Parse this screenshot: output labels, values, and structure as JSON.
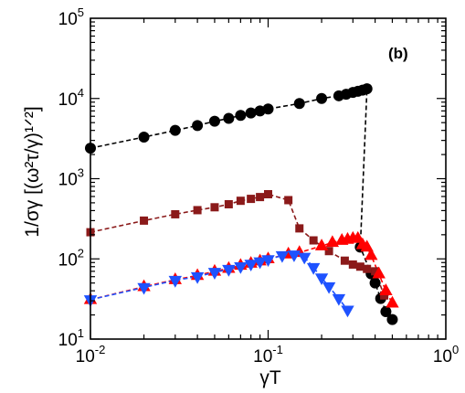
{
  "chart_data": {
    "type": "scatter",
    "x_scale": "log",
    "y_scale": "log",
    "xlim": [
      0.01,
      1
    ],
    "ylim": [
      10,
      100000
    ],
    "x_ticks": [
      {
        "base": "10",
        "exp": "-2",
        "value": 0.01
      },
      {
        "base": "10",
        "exp": "-1",
        "value": 0.1
      },
      {
        "base": "10",
        "exp": "0",
        "value": 1
      }
    ],
    "y_ticks": [
      {
        "base": "10",
        "exp": "1",
        "value": 10
      },
      {
        "base": "10",
        "exp": "2",
        "value": 100
      },
      {
        "base": "10",
        "exp": "3",
        "value": 1000
      },
      {
        "base": "10",
        "exp": "4",
        "value": 10000
      },
      {
        "base": "10",
        "exp": "5",
        "value": 100000
      }
    ],
    "xlabel": "γT",
    "ylabel": "1/σγ [(ω²τ/γ)¹ᐟ²]",
    "panel_label": "(b)",
    "grid": false,
    "legend": "none",
    "series": [
      {
        "marker": "circle",
        "color": "#000000",
        "line_style": "dashed",
        "points": [
          [
            0.01,
            2400
          ],
          [
            0.02,
            3300
          ],
          [
            0.03,
            4000
          ],
          [
            0.04,
            4600
          ],
          [
            0.05,
            5200
          ],
          [
            0.06,
            5650
          ],
          [
            0.07,
            6150
          ],
          [
            0.08,
            6600
          ],
          [
            0.09,
            7000
          ],
          [
            0.1,
            7400
          ],
          [
            0.15,
            8650
          ],
          [
            0.2,
            10000
          ],
          [
            0.25,
            10800
          ],
          [
            0.275,
            11300
          ],
          [
            0.3,
            11900
          ],
          [
            0.32,
            12300
          ],
          [
            0.34,
            12700
          ],
          [
            0.36,
            13200
          ],
          [
            0.33,
            140
          ],
          [
            0.38,
            65
          ],
          [
            0.4,
            50
          ],
          [
            0.43,
            32
          ],
          [
            0.46,
            22
          ],
          [
            0.5,
            17.5
          ]
        ]
      },
      {
        "marker": "square",
        "color": "#8b1a1a",
        "line_style": "dashed",
        "points": [
          [
            0.01,
            215
          ],
          [
            0.02,
            300
          ],
          [
            0.03,
            360
          ],
          [
            0.04,
            405
          ],
          [
            0.05,
            440
          ],
          [
            0.06,
            480
          ],
          [
            0.07,
            530
          ],
          [
            0.08,
            560
          ],
          [
            0.09,
            590
          ],
          [
            0.1,
            640
          ],
          [
            0.13,
            540
          ],
          [
            0.15,
            240
          ],
          [
            0.18,
            170
          ],
          [
            0.22,
            125
          ],
          [
            0.27,
            95
          ],
          [
            0.3,
            85
          ],
          [
            0.33,
            80
          ],
          [
            0.36,
            75
          ],
          [
            0.4,
            70
          ],
          [
            0.45,
            35
          ]
        ]
      },
      {
        "marker": "triangle-up",
        "color": "#ff0000",
        "line_style": "dashed",
        "points": [
          [
            0.01,
            31
          ],
          [
            0.02,
            45
          ],
          [
            0.03,
            55
          ],
          [
            0.04,
            62
          ],
          [
            0.05,
            70
          ],
          [
            0.06,
            76
          ],
          [
            0.07,
            83
          ],
          [
            0.08,
            88
          ],
          [
            0.09,
            94
          ],
          [
            0.1,
            100
          ],
          [
            0.13,
            115
          ],
          [
            0.15,
            120
          ],
          [
            0.2,
            145
          ],
          [
            0.23,
            160
          ],
          [
            0.26,
            170
          ],
          [
            0.28,
            175
          ],
          [
            0.3,
            180
          ],
          [
            0.32,
            180
          ],
          [
            0.34,
            150
          ],
          [
            0.36,
            140
          ],
          [
            0.38,
            110
          ],
          [
            0.42,
            65
          ],
          [
            0.46,
            40
          ],
          [
            0.5,
            28
          ]
        ]
      },
      {
        "marker": "triangle-down",
        "color": "#1e52ff",
        "line_style": "dashed",
        "points": [
          [
            0.01,
            31
          ],
          [
            0.02,
            44
          ],
          [
            0.03,
            54
          ],
          [
            0.04,
            60
          ],
          [
            0.05,
            68
          ],
          [
            0.06,
            74
          ],
          [
            0.07,
            80
          ],
          [
            0.08,
            86
          ],
          [
            0.09,
            92
          ],
          [
            0.1,
            98
          ],
          [
            0.12,
            110
          ],
          [
            0.14,
            112
          ],
          [
            0.16,
            105
          ],
          [
            0.18,
            78
          ],
          [
            0.2,
            58
          ],
          [
            0.22,
            45
          ],
          [
            0.25,
            32
          ],
          [
            0.28,
            23
          ]
        ]
      }
    ]
  }
}
